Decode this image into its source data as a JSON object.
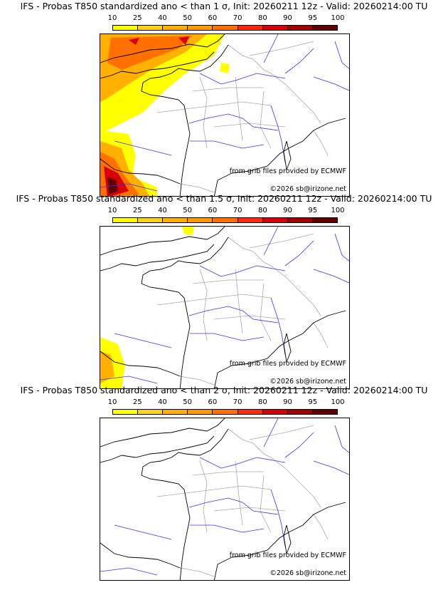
{
  "panels": [
    {
      "title": "IFS - Probas T850  standardized ano < than 1 σ, Init: 20260211 12z - Valid: 20260214:00 TU",
      "threshold_sigma": 1
    },
    {
      "title": "IFS - Probas T850  standardized ano < than 1.5 σ, Init: 20260211 12z - Valid: 20260214:00 TU",
      "threshold_sigma": 1.5
    },
    {
      "title": "IFS - Probas T850  standardized ano < than 2 σ, Init: 20260211 12z - Valid: 20260214:00 TU",
      "threshold_sigma": 2
    }
  ],
  "colorbar": {
    "labels": [
      "10",
      "25",
      "40",
      "50",
      "60",
      "70",
      "80",
      "90",
      "95",
      "100"
    ],
    "colors": [
      "#ffff00",
      "#ffd21a",
      "#ffb000",
      "#ff9a00",
      "#ff7000",
      "#ff2a0a",
      "#d80008",
      "#a00000",
      "#600000"
    ]
  },
  "credits": {
    "source": "from grib files provided by ECMWF",
    "copyright": "©2026 sb@irizone.net"
  }
}
